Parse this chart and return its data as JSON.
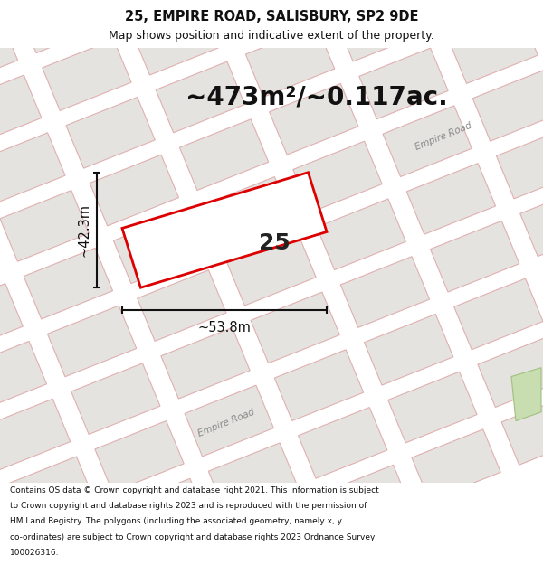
{
  "title_line1": "25, EMPIRE ROAD, SALISBURY, SP2 9DE",
  "title_line2": "Map shows position and indicative extent of the property.",
  "area_text": "~473m²/~0.117ac.",
  "plot_number": "25",
  "dim_width": "~53.8m",
  "dim_height": "~42.3m",
  "footer_lines": [
    "Contains OS data © Crown copyright and database right 2021. This information is subject",
    "to Crown copyright and database rights 2023 and is reproduced with the permission of",
    "HM Land Registry. The polygons (including the associated geometry, namely x, y",
    "co-ordinates) are subject to Crown copyright and database rights 2023 Ordnance Survey",
    "100026316."
  ],
  "bg_color": "#ffffff",
  "map_bg_color": "#f8f6f4",
  "block_color": "#e8e6e2",
  "plot_fill": "#ffffff",
  "plot_edge_color": "#dd0000",
  "road_label_color": "#888888",
  "grid_line_color": "#f0b0b0",
  "block_outline_color": "#e0b0b0",
  "road_color": "#d8d2cc",
  "dim_color": "#111111",
  "title_fontsize": 10.5,
  "subtitle_fontsize": 9.0,
  "area_fontsize": 20,
  "plot_num_fontsize": 18,
  "footer_fontsize": 6.5
}
